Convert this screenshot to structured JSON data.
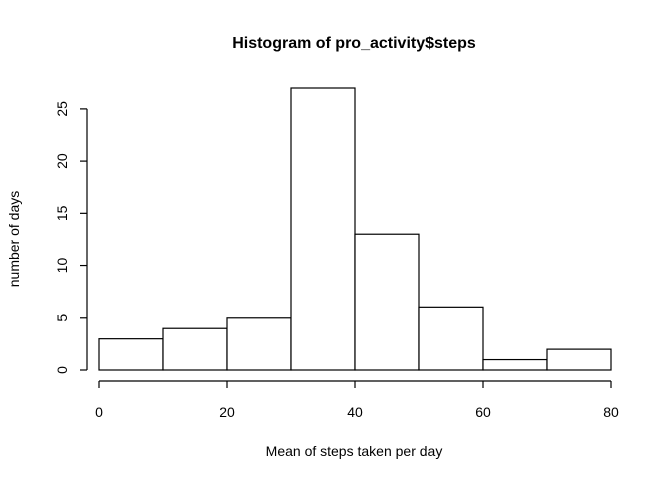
{
  "chart_data": {
    "type": "bar",
    "title": "Histogram of pro_activity$steps",
    "xlabel": "Mean of steps taken per day",
    "ylabel": "number of days",
    "bins": [
      {
        "from": 0,
        "to": 10,
        "count": 3
      },
      {
        "from": 10,
        "to": 20,
        "count": 4
      },
      {
        "from": 20,
        "to": 30,
        "count": 5
      },
      {
        "from": 30,
        "to": 40,
        "count": 27
      },
      {
        "from": 40,
        "to": 50,
        "count": 13
      },
      {
        "from": 50,
        "to": 60,
        "count": 6
      },
      {
        "from": 60,
        "to": 70,
        "count": 1
      },
      {
        "from": 70,
        "to": 80,
        "count": 2
      }
    ],
    "xlim": [
      0,
      80
    ],
    "ylim": [
      0,
      27
    ],
    "x_ticks": [
      "0",
      "20",
      "40",
      "60",
      "80"
    ],
    "y_ticks": [
      "0",
      "5",
      "10",
      "15",
      "20",
      "25"
    ],
    "grid": false
  }
}
